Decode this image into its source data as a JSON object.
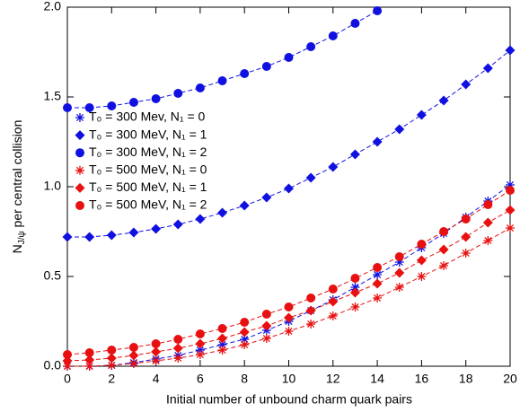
{
  "chart_data": {
    "type": "line",
    "xlabel": "Initial number of unbound charm quark pairs",
    "ylabel": [
      "N",
      "J/ψ",
      " per central collision"
    ],
    "x": [
      0,
      1,
      2,
      3,
      4,
      5,
      6,
      7,
      8,
      9,
      10,
      11,
      12,
      13,
      14,
      15,
      16,
      17,
      18,
      19,
      20
    ],
    "xlim": [
      0,
      20
    ],
    "xticks": [
      0,
      2,
      4,
      6,
      8,
      10,
      12,
      14,
      16,
      18,
      20
    ],
    "ylim": [
      0,
      2
    ],
    "yticks": [
      {
        "value": 0,
        "label": "0.0"
      },
      0.5,
      {
        "value": 1,
        "label": "1.0"
      },
      1.5,
      {
        "value": 2,
        "label": "2.0"
      }
    ],
    "legend": "upper left",
    "series": [
      {
        "name": "T₀ = 300 Mev, N₁ = 0",
        "color": "#1010e0",
        "marker": "asterisk",
        "values": [
          0,
          0,
          0.005,
          0.02,
          0.04,
          0.06,
          0.09,
          0.12,
          0.15,
          0.2,
          0.25,
          0.31,
          0.37,
          0.44,
          0.51,
          0.58,
          0.66,
          0.74,
          0.83,
          0.92,
          1.01
        ]
      },
      {
        "name": "T₀ = 300 MeV, N₁ = 1",
        "color": "#1010e0",
        "marker": "diamond",
        "values": [
          0.72,
          0.72,
          0.73,
          0.745,
          0.765,
          0.79,
          0.82,
          0.855,
          0.895,
          0.94,
          0.99,
          1.05,
          1.11,
          1.18,
          1.25,
          1.32,
          1.4,
          1.48,
          1.57,
          1.66,
          1.76
        ]
      },
      {
        "name": "T₀ = 300 MeV, N₁ = 2",
        "color": "#1010e0",
        "marker": "circle",
        "values": [
          1.44,
          1.44,
          1.45,
          1.47,
          1.49,
          1.52,
          1.55,
          1.59,
          1.63,
          1.67,
          1.72,
          1.78,
          1.84,
          1.91,
          1.98,
          null,
          null,
          null,
          null,
          null,
          null
        ]
      },
      {
        "name": "T₀ = 500 MeV, N₁ = 0",
        "color": "#e81010",
        "marker": "asterisk",
        "values": [
          0,
          0,
          0.005,
          0.015,
          0.03,
          0.045,
          0.065,
          0.09,
          0.12,
          0.155,
          0.195,
          0.235,
          0.28,
          0.33,
          0.38,
          0.44,
          0.5,
          0.56,
          0.63,
          0.7,
          0.77
        ]
      },
      {
        "name": "T₀ = 500 MeV, N₁ = 1",
        "color": "#e81010",
        "marker": "diamond",
        "values": [
          0.03,
          0.035,
          0.045,
          0.06,
          0.08,
          0.1,
          0.125,
          0.155,
          0.19,
          0.225,
          0.27,
          0.31,
          0.36,
          0.41,
          0.46,
          0.52,
          0.59,
          0.65,
          0.72,
          0.8,
          0.87
        ]
      },
      {
        "name": "T₀ = 500 MeV, N₁ = 2",
        "color": "#e81010",
        "marker": "circle",
        "values": [
          0.065,
          0.075,
          0.09,
          0.105,
          0.125,
          0.15,
          0.18,
          0.21,
          0.245,
          0.29,
          0.33,
          0.38,
          0.43,
          0.49,
          0.55,
          0.61,
          0.68,
          0.75,
          0.82,
          0.9,
          0.98
        ]
      }
    ]
  }
}
